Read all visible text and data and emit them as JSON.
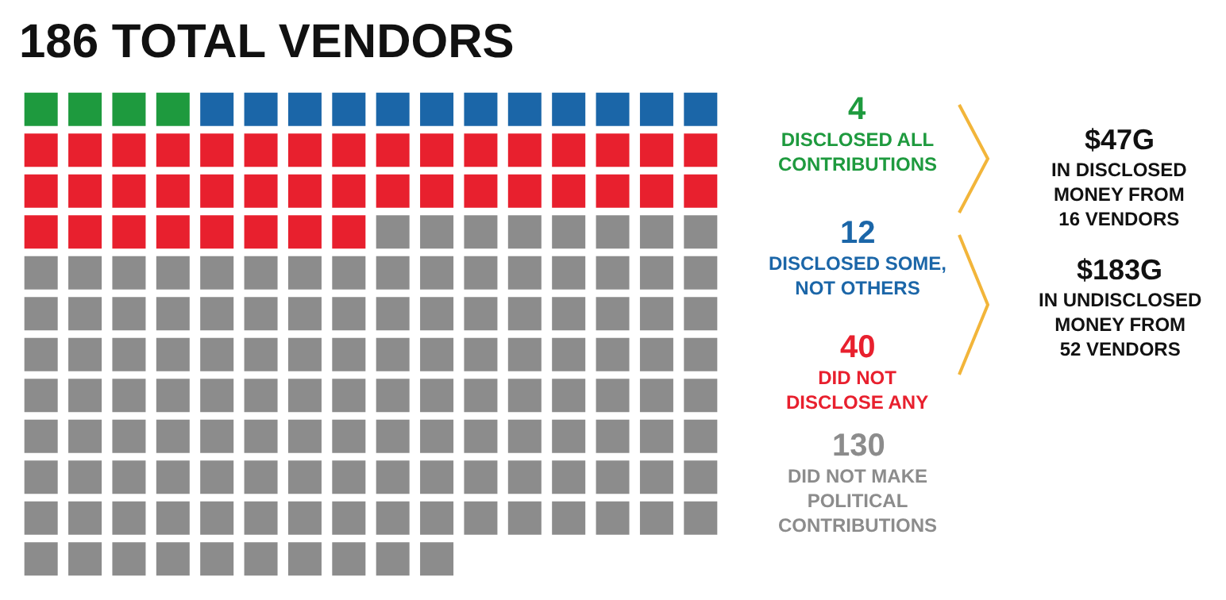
{
  "chart_data": {
    "type": "other",
    "title": "186 TOTAL VENDORS",
    "categories": [
      "DISCLOSED ALL CONTRIBUTIONS",
      "DISCLOSED SOME, NOT OTHERS",
      "DID NOT DISCLOSE ANY",
      "DID NOT MAKE POLITICAL CONTRIBUTIONS"
    ],
    "values": [
      4,
      12,
      40,
      130
    ],
    "data_labels": true,
    "colors": [
      "#1e9a3e",
      "#1b66a8",
      "#e8202e",
      "#8c8c8c"
    ],
    "annotations": [
      "$47G\nIN DISCLOSED\nMONEY FROM\n16 VENDORS",
      "$183G\nIN UNDISCLOSED\nMONEY FROM\n52 VENDORS"
    ]
  }
}
